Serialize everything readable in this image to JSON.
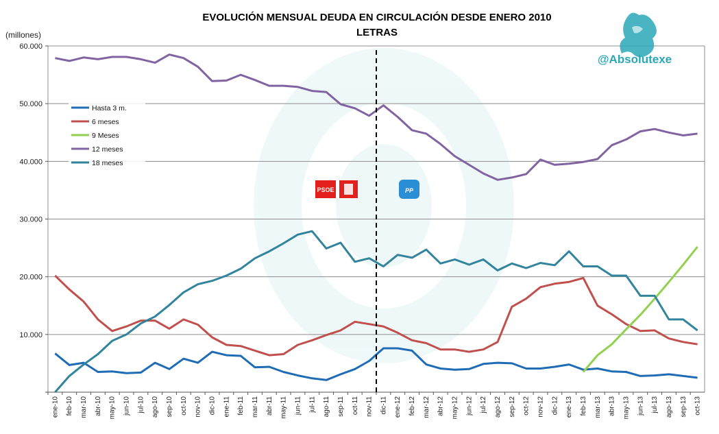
{
  "colors": {
    "background": "#ffffff",
    "grid": "#8c8c8c",
    "divider": "#000000",
    "brand": "#2aa7b7",
    "psoe": "#e2211c",
    "pp": "#2a8ed6"
  },
  "brand_handle": "@Absolutexe",
  "brand_icon": "griffin-icon",
  "annotations": {
    "psoe_logo": "PSOE",
    "pp_logo": "PP"
  },
  "chart_data": {
    "type": "line",
    "title": "EVOLUCIÓN MENSUAL DEUDA EN CIRCULACIÓN DESDE ENERO 2010",
    "subtitle": "LETRAS",
    "ylabel": "(millones)",
    "xlabel": "",
    "ylim": [
      0,
      60000
    ],
    "yticks": [
      "",
      "10.000",
      "20.000",
      "30.000",
      "40.000",
      "50.000",
      "60.000"
    ],
    "grid": true,
    "legend_position": "left",
    "divider_after": "nov-11",
    "categories": [
      "ene-10",
      "feb-10",
      "mar-10",
      "abr-10",
      "may-10",
      "jun-10",
      "jul-10",
      "ago-10",
      "sep-10",
      "oct-10",
      "nov-10",
      "dic-10",
      "ene-11",
      "feb-11",
      "mar-11",
      "abr-11",
      "may-11",
      "jun-11",
      "jul-11",
      "ago-11",
      "sep-11",
      "oct-11",
      "nov-11",
      "dic-11",
      "ene-12",
      "feb-12",
      "mar-12",
      "abr-12",
      "may-12",
      "jun-12",
      "jul-12",
      "ago-12",
      "sep-12",
      "oct-12",
      "nov-12",
      "dic-12",
      "ene-13",
      "feb-13",
      "mar-13",
      "abr-13",
      "may-13",
      "jun-13",
      "jul-13",
      "ago-13",
      "sep-13",
      "oct-13"
    ],
    "series": [
      {
        "name": "Hasta 3 m.",
        "color": "#1f6cb5",
        "values": [
          6700,
          4700,
          5100,
          3500,
          3600,
          3300,
          3400,
          5100,
          4000,
          5800,
          5100,
          7000,
          6400,
          6300,
          4300,
          4400,
          3500,
          2900,
          2400,
          2100,
          3100,
          4000,
          5400,
          7600,
          7600,
          7200,
          4800,
          4100,
          3900,
          4000,
          4900,
          5100,
          5000,
          4100,
          4100,
          4400,
          4800,
          3900,
          4100,
          3600,
          3500,
          2800,
          2900,
          3100,
          2800,
          2500
        ]
      },
      {
        "name": "6 meses",
        "color": "#c0504d",
        "values": [
          20200,
          17800,
          15700,
          12600,
          10600,
          11400,
          12400,
          12400,
          11000,
          12600,
          11700,
          9500,
          8200,
          8000,
          7200,
          6400,
          6600,
          8200,
          9000,
          9900,
          10700,
          12200,
          11800,
          11400,
          10300,
          9000,
          8500,
          7400,
          7400,
          7000,
          7400,
          8700,
          14800,
          16200,
          18200,
          18800,
          19100,
          19800,
          15000,
          13500,
          11800,
          10600,
          10700,
          9300,
          8700,
          8300
        ]
      },
      {
        "name": "9 Meses",
        "color": "#92d050",
        "values": [
          null,
          null,
          null,
          null,
          null,
          null,
          null,
          null,
          null,
          null,
          null,
          null,
          null,
          null,
          null,
          null,
          null,
          null,
          null,
          null,
          null,
          null,
          null,
          null,
          null,
          null,
          null,
          null,
          null,
          null,
          null,
          null,
          null,
          null,
          null,
          null,
          null,
          3500,
          6400,
          8300,
          10900,
          13400,
          16200,
          19100,
          22100,
          25200
        ]
      },
      {
        "name": "12 meses",
        "color": "#8064a2",
        "values": [
          57900,
          57400,
          58000,
          57700,
          58100,
          58100,
          57700,
          57100,
          58500,
          57900,
          56400,
          53900,
          54000,
          55000,
          54100,
          53100,
          53100,
          52900,
          52200,
          52000,
          49900,
          49200,
          47900,
          49700,
          47700,
          45400,
          44800,
          43000,
          40900,
          39400,
          37900,
          36800,
          37200,
          37800,
          40300,
          39400,
          39600,
          39900,
          40400,
          42800,
          43800,
          45200,
          45600,
          45000,
          44500,
          44800
        ]
      },
      {
        "name": "18 meses",
        "color": "#31849b",
        "values": [
          0,
          2800,
          4800,
          6600,
          8900,
          10000,
          11900,
          13100,
          15100,
          17300,
          18700,
          19300,
          20200,
          21400,
          23200,
          24400,
          25800,
          27300,
          27900,
          24900,
          25900,
          22600,
          23200,
          21800,
          23800,
          23300,
          24700,
          22300,
          23000,
          22100,
          23000,
          21100,
          22300,
          21500,
          22400,
          22000,
          24400,
          21800,
          21800,
          20200,
          20200,
          16700,
          16700,
          12600,
          12600,
          10700
        ]
      }
    ]
  }
}
